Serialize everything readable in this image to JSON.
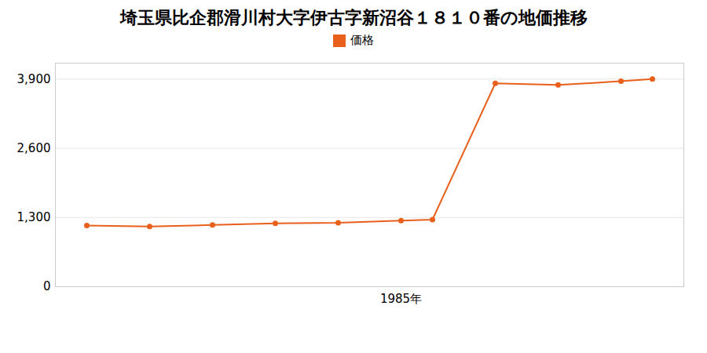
{
  "chart_data": {
    "type": "line",
    "title": "埼玉県比企郡滑川村大字伊古字新沼谷１８１０番の地価推移",
    "x": [
      1975,
      1977,
      1979,
      1981,
      1983,
      1985,
      1986,
      1988,
      1990,
      1992,
      1993
    ],
    "series": [
      {
        "name": "価格",
        "color": "#e8601c",
        "marker": "circle",
        "values": [
          1150,
          1130,
          1160,
          1190,
          1200,
          1240,
          1260,
          3820,
          3790,
          3860,
          3900
        ]
      }
    ],
    "xlim": [
      1974,
      1994
    ],
    "xticks": [
      {
        "value": 1985,
        "label": "1985年"
      }
    ],
    "ylim": [
      0,
      4200
    ],
    "yticks": [
      0,
      {
        "value": 1300,
        "label": "1,300"
      },
      {
        "value": 2600,
        "label": "2,600"
      },
      {
        "value": 3900,
        "label": "3,900"
      }
    ],
    "grid": true,
    "legend": "top"
  }
}
